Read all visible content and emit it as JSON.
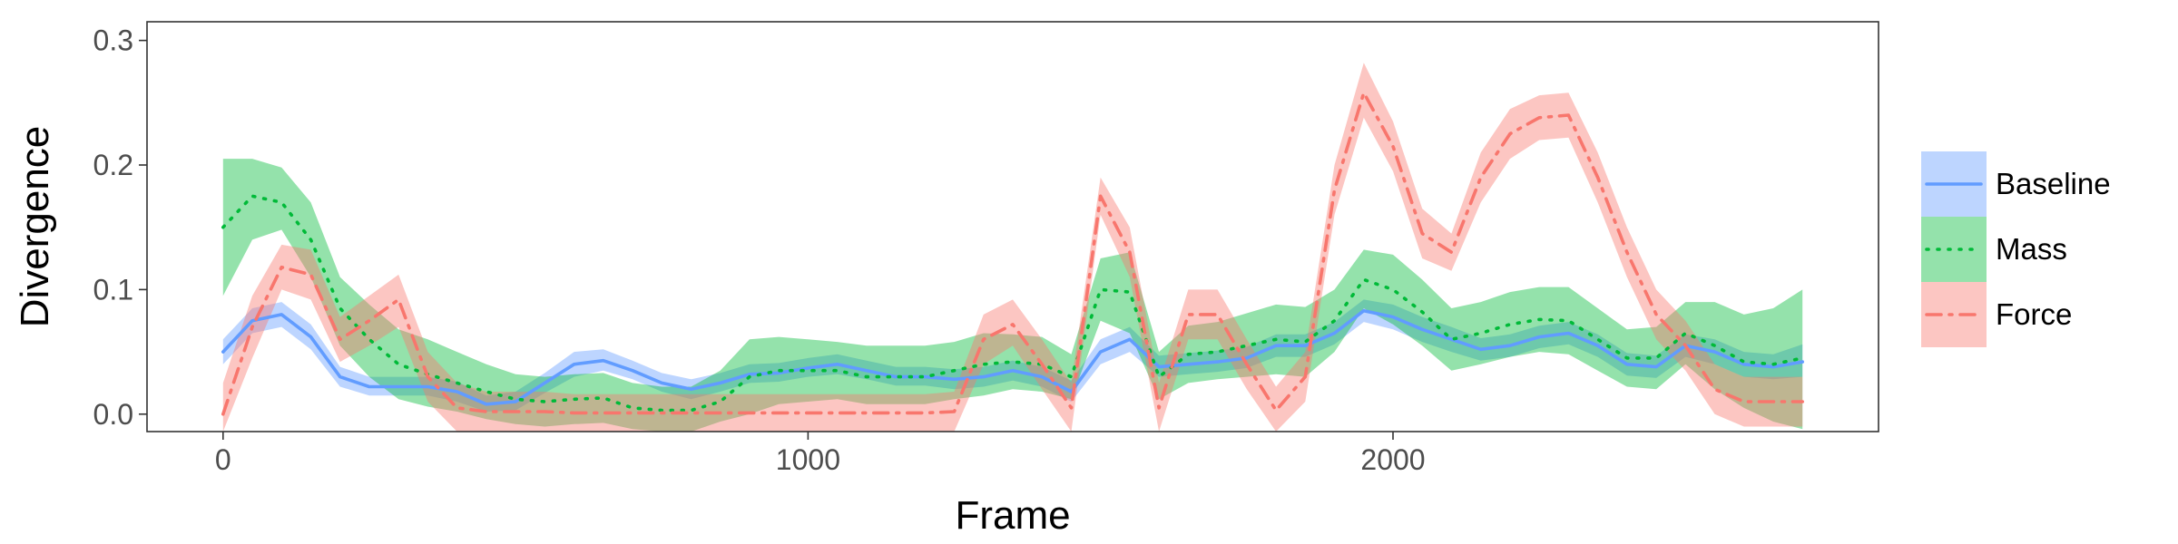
{
  "chart_data": {
    "type": "line",
    "xlabel": "Frame",
    "ylabel": "Divergence",
    "xlim": [
      -130,
      2830
    ],
    "ylim": [
      -0.014,
      0.315
    ],
    "x_ticks": [
      0,
      1000,
      2000
    ],
    "x_tick_labels": [
      "0",
      "1000",
      "2000"
    ],
    "y_ticks": [
      0.0,
      0.1,
      0.2,
      0.3
    ],
    "y_tick_labels": [
      "0.0",
      "0.1",
      "0.2",
      "0.3"
    ],
    "grid": false,
    "legend_position": "right",
    "series": [
      {
        "name": "Baseline",
        "color": "#619CFF",
        "line_style": "solid",
        "x": [
          0,
          50,
          100,
          150,
          200,
          250,
          300,
          350,
          400,
          450,
          500,
          550,
          600,
          650,
          700,
          750,
          800,
          850,
          900,
          950,
          1000,
          1050,
          1100,
          1150,
          1200,
          1250,
          1300,
          1350,
          1400,
          1450,
          1500,
          1550,
          1600,
          1650,
          1700,
          1750,
          1800,
          1850,
          1900,
          1950,
          2000,
          2050,
          2100,
          2150,
          2200,
          2250,
          2300,
          2350,
          2400,
          2450,
          2500,
          2550,
          2600,
          2650,
          2700
        ],
        "y": [
          0.05,
          0.075,
          0.08,
          0.062,
          0.03,
          0.022,
          0.022,
          0.022,
          0.018,
          0.008,
          0.01,
          0.025,
          0.04,
          0.043,
          0.035,
          0.025,
          0.02,
          0.025,
          0.032,
          0.033,
          0.037,
          0.04,
          0.035,
          0.03,
          0.03,
          0.028,
          0.03,
          0.035,
          0.03,
          0.018,
          0.05,
          0.06,
          0.038,
          0.04,
          0.042,
          0.045,
          0.055,
          0.055,
          0.065,
          0.083,
          0.078,
          0.068,
          0.06,
          0.052,
          0.055,
          0.062,
          0.065,
          0.055,
          0.04,
          0.038,
          0.055,
          0.05,
          0.04,
          0.038,
          0.042
        ],
        "lower": [
          0.04,
          0.065,
          0.07,
          0.052,
          0.022,
          0.015,
          0.015,
          0.015,
          0.01,
          0.002,
          0.003,
          0.017,
          0.03,
          0.035,
          0.028,
          0.018,
          0.012,
          0.018,
          0.025,
          0.026,
          0.03,
          0.032,
          0.028,
          0.023,
          0.023,
          0.02,
          0.022,
          0.027,
          0.022,
          0.01,
          0.04,
          0.05,
          0.03,
          0.032,
          0.034,
          0.037,
          0.046,
          0.046,
          0.056,
          0.074,
          0.068,
          0.058,
          0.05,
          0.043,
          0.046,
          0.053,
          0.056,
          0.046,
          0.031,
          0.029,
          0.046,
          0.04,
          0.03,
          0.028,
          0.03
        ],
        "upper": [
          0.06,
          0.085,
          0.09,
          0.072,
          0.038,
          0.03,
          0.03,
          0.03,
          0.026,
          0.015,
          0.018,
          0.033,
          0.05,
          0.052,
          0.043,
          0.033,
          0.028,
          0.033,
          0.04,
          0.041,
          0.045,
          0.048,
          0.043,
          0.038,
          0.038,
          0.036,
          0.038,
          0.043,
          0.038,
          0.027,
          0.06,
          0.07,
          0.047,
          0.049,
          0.051,
          0.054,
          0.064,
          0.064,
          0.074,
          0.092,
          0.088,
          0.078,
          0.07,
          0.061,
          0.064,
          0.071,
          0.074,
          0.064,
          0.049,
          0.047,
          0.064,
          0.06,
          0.05,
          0.048,
          0.056
        ]
      },
      {
        "name": "Mass",
        "color": "#00BA38",
        "line_style": "dotted",
        "x": [
          0,
          50,
          100,
          150,
          200,
          250,
          300,
          350,
          400,
          450,
          500,
          550,
          600,
          650,
          700,
          750,
          800,
          850,
          900,
          950,
          1000,
          1050,
          1100,
          1150,
          1200,
          1250,
          1300,
          1350,
          1400,
          1450,
          1500,
          1550,
          1600,
          1650,
          1700,
          1750,
          1800,
          1850,
          1900,
          1950,
          2000,
          2050,
          2100,
          2150,
          2200,
          2250,
          2300,
          2350,
          2400,
          2450,
          2500,
          2550,
          2600,
          2650,
          2700
        ],
        "y": [
          0.15,
          0.175,
          0.17,
          0.14,
          0.085,
          0.06,
          0.04,
          0.032,
          0.025,
          0.018,
          0.012,
          0.01,
          0.012,
          0.013,
          0.005,
          0.003,
          0.003,
          0.01,
          0.03,
          0.035,
          0.035,
          0.035,
          0.03,
          0.03,
          0.03,
          0.035,
          0.04,
          0.042,
          0.04,
          0.03,
          0.1,
          0.098,
          0.03,
          0.048,
          0.05,
          0.055,
          0.06,
          0.058,
          0.075,
          0.108,
          0.1,
          0.082,
          0.06,
          0.065,
          0.072,
          0.076,
          0.075,
          0.06,
          0.045,
          0.045,
          0.065,
          0.055,
          0.042,
          0.04,
          0.045
        ],
        "lower": [
          0.095,
          0.14,
          0.148,
          0.11,
          0.055,
          0.03,
          0.012,
          0.006,
          0.002,
          -0.004,
          -0.008,
          -0.01,
          -0.008,
          -0.007,
          -0.012,
          -0.014,
          -0.014,
          -0.006,
          0.0,
          0.008,
          0.01,
          0.012,
          0.008,
          0.008,
          0.008,
          0.012,
          0.015,
          0.02,
          0.018,
          0.012,
          0.075,
          0.065,
          0.012,
          0.025,
          0.028,
          0.03,
          0.032,
          0.03,
          0.05,
          0.085,
          0.072,
          0.055,
          0.035,
          0.04,
          0.046,
          0.05,
          0.048,
          0.035,
          0.022,
          0.02,
          0.04,
          0.02,
          0.005,
          -0.006,
          -0.012
        ],
        "upper": [
          0.205,
          0.205,
          0.198,
          0.17,
          0.11,
          0.088,
          0.068,
          0.06,
          0.05,
          0.04,
          0.032,
          0.03,
          0.032,
          0.033,
          0.025,
          0.022,
          0.022,
          0.035,
          0.06,
          0.062,
          0.06,
          0.058,
          0.055,
          0.055,
          0.055,
          0.058,
          0.065,
          0.064,
          0.062,
          0.048,
          0.125,
          0.13,
          0.05,
          0.071,
          0.074,
          0.081,
          0.088,
          0.086,
          0.1,
          0.132,
          0.128,
          0.108,
          0.085,
          0.09,
          0.098,
          0.102,
          0.102,
          0.085,
          0.068,
          0.07,
          0.09,
          0.09,
          0.08,
          0.085,
          0.1
        ]
      },
      {
        "name": "Force",
        "color": "#F8766D",
        "line_style": "dashdot",
        "x": [
          0,
          50,
          100,
          150,
          200,
          250,
          300,
          350,
          400,
          450,
          500,
          550,
          600,
          650,
          700,
          750,
          800,
          850,
          900,
          950,
          1000,
          1050,
          1100,
          1150,
          1200,
          1250,
          1300,
          1350,
          1400,
          1450,
          1500,
          1550,
          1600,
          1650,
          1700,
          1750,
          1800,
          1850,
          1900,
          1950,
          2000,
          2050,
          2100,
          2150,
          2200,
          2250,
          2300,
          2350,
          2400,
          2450,
          2500,
          2550,
          2600,
          2650,
          2700
        ],
        "y": [
          0.0,
          0.07,
          0.118,
          0.112,
          0.06,
          0.075,
          0.092,
          0.03,
          0.005,
          0.002,
          0.002,
          0.002,
          0.001,
          0.001,
          0.001,
          0.001,
          0.001,
          0.001,
          0.001,
          0.001,
          0.001,
          0.001,
          0.001,
          0.001,
          0.001,
          0.002,
          0.06,
          0.072,
          0.04,
          0.005,
          0.175,
          0.13,
          0.005,
          0.08,
          0.08,
          0.04,
          0.003,
          0.03,
          0.18,
          0.258,
          0.215,
          0.145,
          0.13,
          0.19,
          0.225,
          0.238,
          0.24,
          0.19,
          0.13,
          0.08,
          0.055,
          0.02,
          0.01,
          0.01,
          0.01
        ],
        "lower": [
          -0.025,
          0.045,
          0.1,
          0.092,
          0.042,
          0.055,
          0.07,
          0.01,
          -0.014,
          -0.014,
          -0.014,
          -0.014,
          -0.014,
          -0.014,
          -0.014,
          -0.014,
          -0.014,
          -0.014,
          -0.014,
          -0.014,
          -0.014,
          -0.014,
          -0.014,
          -0.014,
          -0.014,
          -0.014,
          0.04,
          0.055,
          0.02,
          -0.014,
          0.16,
          0.11,
          -0.014,
          0.06,
          0.06,
          0.02,
          -0.014,
          0.01,
          0.16,
          0.238,
          0.195,
          0.125,
          0.115,
          0.17,
          0.205,
          0.22,
          0.222,
          0.17,
          0.11,
          0.06,
          0.035,
          0.0,
          -0.01,
          -0.01,
          -0.01
        ],
        "upper": [
          0.025,
          0.095,
          0.136,
          0.132,
          0.078,
          0.095,
          0.112,
          0.05,
          0.025,
          0.018,
          0.018,
          0.018,
          0.016,
          0.016,
          0.016,
          0.016,
          0.016,
          0.016,
          0.016,
          0.016,
          0.016,
          0.016,
          0.016,
          0.016,
          0.016,
          0.018,
          0.08,
          0.092,
          0.06,
          0.025,
          0.19,
          0.15,
          0.025,
          0.1,
          0.1,
          0.06,
          0.022,
          0.05,
          0.2,
          0.282,
          0.235,
          0.165,
          0.145,
          0.21,
          0.245,
          0.256,
          0.258,
          0.21,
          0.15,
          0.1,
          0.075,
          0.04,
          0.03,
          0.03,
          0.03
        ]
      }
    ]
  }
}
